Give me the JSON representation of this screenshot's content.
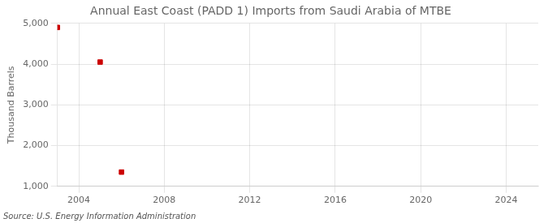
{
  "chart_data": {
    "type": "scatter",
    "title": "Annual East Coast (PADD 1) Imports from Saudi Arabia of MTBE",
    "ylabel": "Thousand Barrels",
    "source": "Source: U.S. Energy Information Administration",
    "x": [
      2003,
      2005,
      2006
    ],
    "values": [
      4900,
      4050,
      1350
    ],
    "color": "#cc0000",
    "marker": "square",
    "xlim": [
      2003.0,
      2025.5
    ],
    "xticks": [
      2004,
      2008,
      2012,
      2016,
      2020,
      2024
    ],
    "ylim": [
      1000,
      5000
    ],
    "yticks": [
      {
        "value": 1000,
        "label": "1,000"
      },
      {
        "value": 2000,
        "label": "2,000"
      },
      {
        "value": 3000,
        "label": "3,000"
      },
      {
        "value": 4000,
        "label": "4,000"
      },
      {
        "value": 5000,
        "label": "5,000"
      }
    ],
    "grid": true
  }
}
